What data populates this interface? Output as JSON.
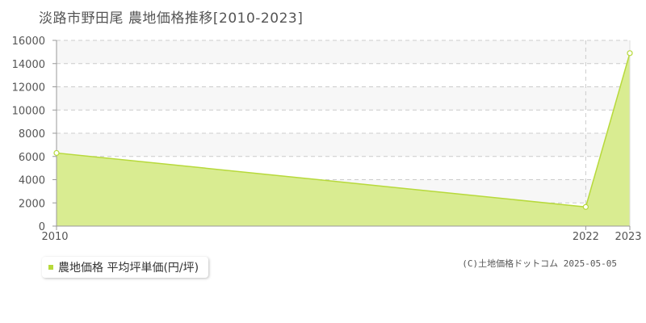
{
  "chart_data": {
    "type": "area",
    "title": "淡路市野田尾 農地価格推移[2010-2023]",
    "x": [
      "2010",
      "2022",
      "2023"
    ],
    "series": [
      {
        "name": "農地価格 平均坪単価(円/坪)",
        "values": [
          6300,
          1650,
          14900
        ]
      }
    ],
    "y_ticks": [
      "0",
      "2000",
      "4000",
      "6000",
      "8000",
      "10000",
      "12000",
      "14000",
      "16000"
    ],
    "ylim": [
      0,
      16000
    ],
    "xlabel": "",
    "ylabel": "",
    "grid": true,
    "legend_position": "bottom-left",
    "colors": {
      "fill": "#d9ec91",
      "line": "#b7d93b",
      "band": "#f7f7f7",
      "grid": "#cccccc",
      "axis": "#999999"
    }
  },
  "legend": {
    "label": "農地価格 平均坪単価(円/坪)"
  },
  "footer": {
    "copyright": "(C)土地価格ドットコム 2025-05-05"
  }
}
